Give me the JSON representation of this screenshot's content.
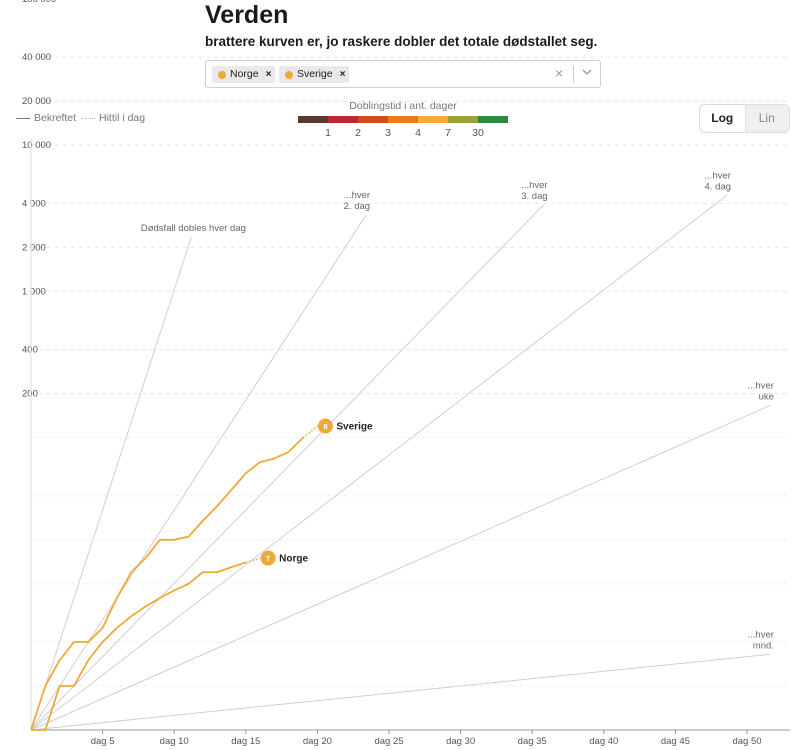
{
  "header": {
    "title": "Verden",
    "subtitle": "brattere kurven er, jo raskere dobler det totale dødstallet seg."
  },
  "selector": {
    "chips": [
      {
        "label": "Norge",
        "remove": "×"
      },
      {
        "label": "Sverige",
        "remove": "×"
      }
    ],
    "clear": "×"
  },
  "legend": {
    "confirmed": "Bekreftet",
    "to_date": "Hittil i dag"
  },
  "doubling_scale": {
    "title": "Doblingstid i ant. dager",
    "colors": [
      "#5a3a2e",
      "#c0282f",
      "#d44a25",
      "#ea7a1a",
      "#f3ab3a",
      "#9aa23a",
      "#2e8b3e"
    ],
    "labels": [
      "1",
      "2",
      "3",
      "4",
      "7",
      "30"
    ]
  },
  "scale_toggle": {
    "options": [
      "Log",
      "Lin"
    ],
    "active": "Log"
  },
  "chart_data": {
    "type": "line",
    "y_scale": "log",
    "x_range": [
      0,
      52
    ],
    "y_range": [
      1,
      100000
    ],
    "y_ticks": [
      {
        "value": 100000,
        "label": "100 000"
      },
      {
        "value": 40000,
        "label": "40 000"
      },
      {
        "value": 20000,
        "label": "20 000"
      },
      {
        "value": 10000,
        "label": "10 000"
      },
      {
        "value": 4000,
        "label": "4 000"
      },
      {
        "value": 2000,
        "label": "2 000"
      },
      {
        "value": 1000,
        "label": "1 000"
      },
      {
        "value": 400,
        "label": "400"
      },
      {
        "value": 200,
        "label": "200"
      }
    ],
    "x_ticks": [
      {
        "value": 5,
        "label": "dag 5"
      },
      {
        "value": 10,
        "label": "dag 10"
      },
      {
        "value": 15,
        "label": "dag 15"
      },
      {
        "value": 20,
        "label": "dag 20"
      },
      {
        "value": 25,
        "label": "dag 25"
      },
      {
        "value": 30,
        "label": "dag 30"
      },
      {
        "value": 35,
        "label": "dag 35"
      },
      {
        "value": 40,
        "label": "dag 40"
      },
      {
        "value": 45,
        "label": "dag 45"
      },
      {
        "value": 50,
        "label": "dag 50"
      }
    ],
    "reference_lines": [
      {
        "doubling_days": 1,
        "label": [
          "Dødsfall dobles hver dag"
        ],
        "end_x": 11.2
      },
      {
        "doubling_days": 2,
        "label": [
          "...hver",
          "2. dag"
        ],
        "end_x": 23.4
      },
      {
        "doubling_days": 3,
        "label": [
          "...hver",
          "3. dag"
        ],
        "end_x": 35.8
      },
      {
        "doubling_days": 4,
        "label": [
          "...hver",
          "4. dag"
        ],
        "end_x": 48.6
      },
      {
        "doubling_days": 7,
        "label": [
          "...hver",
          "uke"
        ],
        "end_x": 51.6
      },
      {
        "doubling_days": 30,
        "label": [
          "...hver",
          "mnd."
        ],
        "end_x": 51.6
      }
    ],
    "series": [
      {
        "name": "Sverige",
        "color": "#f0a836",
        "days_label": "8",
        "values": [
          [
            0,
            1
          ],
          [
            1,
            2
          ],
          [
            2,
            3
          ],
          [
            3,
            4
          ],
          [
            4,
            4
          ],
          [
            5,
            5
          ],
          [
            6,
            8
          ],
          [
            7,
            12
          ],
          [
            8,
            15
          ],
          [
            9,
            20
          ],
          [
            10,
            20
          ],
          [
            11,
            21
          ],
          [
            12,
            27
          ],
          [
            13,
            34
          ],
          [
            14,
            44
          ],
          [
            15,
            57
          ],
          [
            16,
            68
          ],
          [
            17,
            72
          ],
          [
            18,
            80
          ],
          [
            19,
            100
          ]
        ],
        "today": [
          [
            19,
            100
          ],
          [
            20,
            120
          ]
        ]
      },
      {
        "name": "Norge",
        "color": "#f0a836",
        "days_label": "7",
        "values": [
          [
            0,
            1
          ],
          [
            1,
            1
          ],
          [
            2,
            2
          ],
          [
            3,
            2
          ],
          [
            4,
            3
          ],
          [
            5,
            4
          ],
          [
            6,
            5
          ],
          [
            7,
            6
          ],
          [
            8,
            7
          ],
          [
            9,
            8
          ],
          [
            10,
            9
          ],
          [
            11,
            10
          ],
          [
            12,
            12
          ],
          [
            13,
            12
          ],
          [
            14,
            13
          ],
          [
            15,
            14
          ]
        ],
        "today": [
          [
            15,
            14
          ],
          [
            16,
            15
          ]
        ]
      }
    ]
  }
}
